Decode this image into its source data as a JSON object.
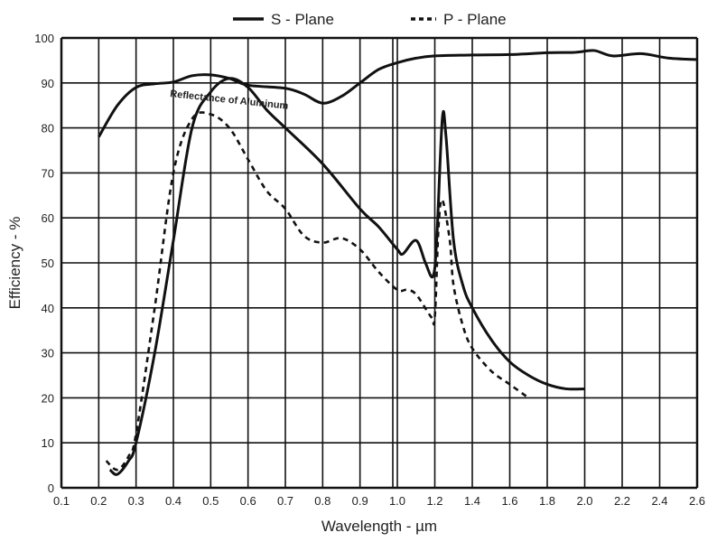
{
  "chart_data": {
    "type": "line",
    "title": "",
    "xlabel": "Wavelength - µm",
    "ylabel": "Efficiency - %",
    "xlim": [
      0.1,
      2.6
    ],
    "ylim": [
      0,
      100
    ],
    "grid": true,
    "x_scale_note": "0.1-1.0 in 0.1 steps, 1.0-2.6 in 0.2 steps (equal spacing per gridline)",
    "x_ticks": [
      "0.1",
      "0.2",
      "0.3",
      "0.4",
      "0.5",
      "0.6",
      "0.7",
      "0.8",
      "0.9",
      "1.0",
      "1.2",
      "1.4",
      "1.6",
      "1.8",
      "2.0",
      "2.2",
      "2.4",
      "2.6"
    ],
    "y_ticks": [
      "0",
      "10",
      "20",
      "30",
      "40",
      "50",
      "60",
      "70",
      "80",
      "90",
      "100"
    ],
    "legend": {
      "placement": "top-center",
      "entries": [
        "S - Plane",
        "P - Plane"
      ]
    },
    "annotation": "Reflectance of Aluminum",
    "series": [
      {
        "name": "S - Plane",
        "style": "solid",
        "x": [
          0.23,
          0.25,
          0.28,
          0.3,
          0.35,
          0.4,
          0.45,
          0.5,
          0.55,
          0.6,
          0.65,
          0.7,
          0.8,
          0.9,
          0.95,
          1.0,
          1.03,
          1.1,
          1.15,
          1.19,
          1.21,
          1.24,
          1.26,
          1.3,
          1.35,
          1.4,
          1.5,
          1.6,
          1.7,
          1.8,
          1.9,
          2.0
        ],
        "y": [
          4,
          3,
          6,
          10,
          30,
          55,
          80,
          88,
          91,
          89,
          84,
          80,
          72,
          62,
          58,
          53,
          52,
          55,
          50,
          47,
          55,
          82,
          78,
          55,
          45,
          40,
          33,
          28,
          25,
          23,
          22,
          22
        ]
      },
      {
        "name": "P - Plane",
        "style": "dashed",
        "x": [
          0.22,
          0.25,
          0.28,
          0.3,
          0.35,
          0.4,
          0.45,
          0.5,
          0.55,
          0.6,
          0.65,
          0.7,
          0.75,
          0.8,
          0.85,
          0.9,
          0.95,
          1.0,
          1.05,
          1.1,
          1.18,
          1.2,
          1.22,
          1.24,
          1.28,
          1.3,
          1.35,
          1.4,
          1.5,
          1.6,
          1.7
        ],
        "y": [
          6,
          4,
          7,
          12,
          40,
          70,
          82,
          83,
          80,
          73,
          66,
          62,
          56,
          54.5,
          55.5,
          53,
          48,
          44,
          44,
          43,
          38,
          38,
          58,
          64,
          55,
          45,
          36,
          31,
          26,
          23,
          20
        ]
      },
      {
        "name": "Reflectance of Aluminum",
        "style": "solid",
        "x": [
          0.2,
          0.25,
          0.3,
          0.35,
          0.4,
          0.45,
          0.5,
          0.55,
          0.6,
          0.7,
          0.75,
          0.8,
          0.85,
          0.9,
          0.95,
          1.0,
          1.1,
          1.2,
          1.4,
          1.6,
          1.8,
          1.95,
          2.05,
          2.15,
          2.3,
          2.45,
          2.6
        ],
        "y": [
          78,
          85,
          89,
          89.8,
          90.2,
          91.6,
          91.8,
          91,
          89.5,
          88.8,
          87.5,
          85.5,
          87,
          90,
          93,
          94.5,
          95.5,
          96,
          96.2,
          96.3,
          96.7,
          96.8,
          97.2,
          96,
          96.5,
          95.5,
          95.2
        ]
      }
    ]
  }
}
